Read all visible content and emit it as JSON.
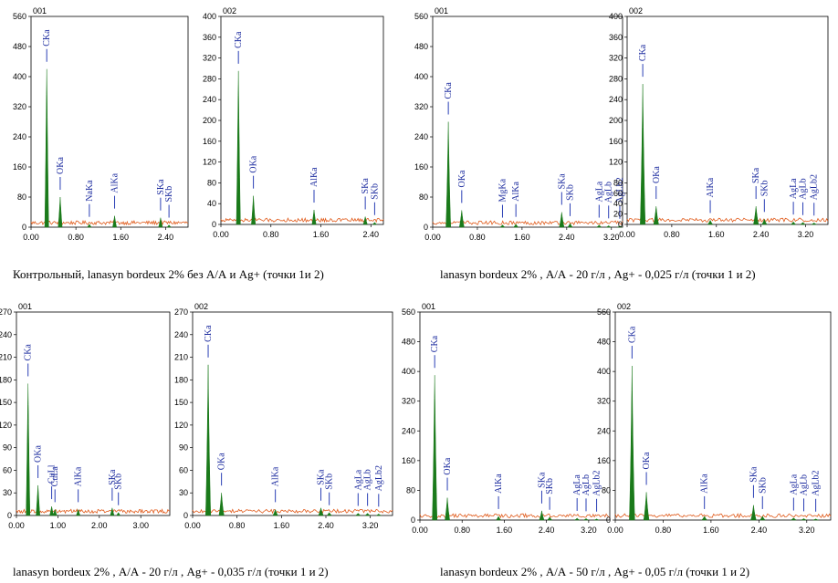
{
  "chart_data": [
    {
      "id": "001",
      "type": "area",
      "ylim": [
        0,
        560
      ],
      "yticks": [
        0,
        80,
        160,
        240,
        320,
        400,
        480,
        560
      ],
      "xlim": [
        0,
        2.8
      ],
      "xticks": [
        0.0,
        0.8,
        1.6,
        2.4
      ],
      "xtick_labels": [
        "0.00",
        "0.80",
        "1.60",
        "2.40"
      ],
      "color": "#1a7a1a",
      "noise_color": "#e05a1a",
      "peaks": [
        {
          "x": 0.28,
          "y": 420
        },
        {
          "x": 0.52,
          "y": 80
        },
        {
          "x": 1.04,
          "y": 8
        },
        {
          "x": 1.49,
          "y": 30
        },
        {
          "x": 2.31,
          "y": 25
        },
        {
          "x": 2.46,
          "y": 6
        }
      ],
      "lines": [
        {
          "label": "CKa",
          "x": 0.28
        },
        {
          "label": "OKa",
          "x": 0.52
        },
        {
          "label": "NaKa",
          "x": 1.04
        },
        {
          "label": "AlKa",
          "x": 1.49
        },
        {
          "label": "SKa",
          "x": 2.31
        },
        {
          "label": "SKb",
          "x": 2.46
        }
      ]
    },
    {
      "id": "002",
      "type": "area",
      "ylim": [
        0,
        400
      ],
      "yticks": [
        0,
        40,
        80,
        120,
        160,
        200,
        240,
        280,
        320,
        360,
        400
      ],
      "xlim": [
        0,
        2.6
      ],
      "xticks": [
        0.0,
        0.8,
        1.6,
        2.4
      ],
      "xtick_labels": [
        "0.00",
        "0.80",
        "1.60",
        "2.40"
      ],
      "color": "#1a7a1a",
      "noise_color": "#e05a1a",
      "peaks": [
        {
          "x": 0.28,
          "y": 295
        },
        {
          "x": 0.52,
          "y": 55
        },
        {
          "x": 1.49,
          "y": 28
        },
        {
          "x": 2.31,
          "y": 15
        },
        {
          "x": 2.46,
          "y": 4
        }
      ],
      "lines": [
        {
          "label": "CKa",
          "x": 0.28
        },
        {
          "label": "OKa",
          "x": 0.52
        },
        {
          "label": "AlKa",
          "x": 1.49
        },
        {
          "label": "SKa",
          "x": 2.31
        },
        {
          "label": "SKb",
          "x": 2.46
        }
      ]
    },
    {
      "id": "001",
      "type": "area",
      "ylim": [
        0,
        560
      ],
      "yticks": [
        0,
        80,
        160,
        240,
        320,
        400,
        480,
        560
      ],
      "xlim": [
        0,
        3.4
      ],
      "xticks": [
        0.0,
        0.8,
        1.6,
        2.4,
        3.2
      ],
      "xtick_labels": [
        "0.00",
        "0.80",
        "1.60",
        "2.40",
        "3.20"
      ],
      "color": "#1a7a1a",
      "noise_color": "#e05a1a",
      "peaks": [
        {
          "x": 0.28,
          "y": 280
        },
        {
          "x": 0.52,
          "y": 45
        },
        {
          "x": 1.25,
          "y": 6
        },
        {
          "x": 1.49,
          "y": 8
        },
        {
          "x": 2.31,
          "y": 40
        },
        {
          "x": 2.46,
          "y": 10
        },
        {
          "x": 2.98,
          "y": 6
        },
        {
          "x": 3.15,
          "y": 4
        },
        {
          "x": 3.35,
          "y": 3
        }
      ],
      "lines": [
        {
          "label": "CKa",
          "x": 0.28
        },
        {
          "label": "OKa",
          "x": 0.52
        },
        {
          "label": "MgKa",
          "x": 1.25
        },
        {
          "label": "AlKa",
          "x": 1.49
        },
        {
          "label": "SKa",
          "x": 2.31
        },
        {
          "label": "SKb",
          "x": 2.46
        },
        {
          "label": "AgLa",
          "x": 2.98
        },
        {
          "label": "AgLb",
          "x": 3.15
        },
        {
          "label": "AgLb2",
          "x": 3.35
        }
      ]
    },
    {
      "id": "002",
      "type": "area",
      "ylim": [
        0,
        400
      ],
      "yticks": [
        0,
        20,
        40,
        60,
        80,
        120,
        160,
        200,
        240,
        280,
        320,
        360,
        400
      ],
      "xlim": [
        0,
        3.6
      ],
      "xticks": [
        0.0,
        0.8,
        1.6,
        2.4,
        3.2
      ],
      "xtick_labels": [
        "0.00",
        "0.80",
        "1.60",
        "2.40",
        "3.20"
      ],
      "color": "#1a7a1a",
      "noise_color": "#e05a1a",
      "peaks": [
        {
          "x": 0.28,
          "y": 270
        },
        {
          "x": 0.52,
          "y": 35
        },
        {
          "x": 1.49,
          "y": 8
        },
        {
          "x": 2.31,
          "y": 35
        },
        {
          "x": 2.46,
          "y": 10
        },
        {
          "x": 2.98,
          "y": 5
        },
        {
          "x": 3.15,
          "y": 4
        },
        {
          "x": 3.35,
          "y": 3
        }
      ],
      "lines": [
        {
          "label": "CKa",
          "x": 0.28
        },
        {
          "label": "OKa",
          "x": 0.52
        },
        {
          "label": "AlKa",
          "x": 1.49
        },
        {
          "label": "SKa",
          "x": 2.31
        },
        {
          "label": "SKb",
          "x": 2.46
        },
        {
          "label": "AgLa",
          "x": 2.98
        },
        {
          "label": "AgLb",
          "x": 3.15
        },
        {
          "label": "AgLb2",
          "x": 3.35
        }
      ]
    },
    {
      "id": "001",
      "type": "area",
      "ylim": [
        0,
        270
      ],
      "yticks": [
        0,
        30,
        60,
        90,
        120,
        150,
        180,
        210,
        240,
        270
      ],
      "xlim": [
        0,
        3.7
      ],
      "xticks": [
        0.0,
        1.0,
        2.0,
        3.0
      ],
      "xtick_labels": [
        "0.00",
        "1.00",
        "2.00",
        "3.00"
      ],
      "color": "#1a7a1a",
      "noise_color": "#e05a1a",
      "peaks": [
        {
          "x": 0.28,
          "y": 175
        },
        {
          "x": 0.52,
          "y": 40
        },
        {
          "x": 0.85,
          "y": 12
        },
        {
          "x": 0.93,
          "y": 8
        },
        {
          "x": 1.49,
          "y": 8
        },
        {
          "x": 2.31,
          "y": 10
        },
        {
          "x": 2.46,
          "y": 4
        }
      ],
      "lines": [
        {
          "label": "CKa",
          "x": 0.28
        },
        {
          "label": "OKa",
          "x": 0.52
        },
        {
          "label": "CuLl",
          "x": 0.85
        },
        {
          "label": "CuLa",
          "x": 0.93
        },
        {
          "label": "AlKa",
          "x": 1.49
        },
        {
          "label": "SKa",
          "x": 2.31
        },
        {
          "label": "SKb",
          "x": 2.46
        }
      ]
    },
    {
      "id": "002",
      "type": "area",
      "ylim": [
        0,
        270
      ],
      "yticks": [
        0,
        30,
        60,
        90,
        120,
        150,
        180,
        210,
        240,
        270
      ],
      "xlim": [
        0,
        3.6
      ],
      "xticks": [
        0.0,
        0.8,
        1.6,
        2.4,
        3.2
      ],
      "xtick_labels": [
        "0.00",
        "0.80",
        "1.60",
        "2.40",
        "3.20"
      ],
      "color": "#1a7a1a",
      "noise_color": "#e05a1a",
      "peaks": [
        {
          "x": 0.28,
          "y": 200
        },
        {
          "x": 0.52,
          "y": 30
        },
        {
          "x": 1.49,
          "y": 8
        },
        {
          "x": 2.31,
          "y": 10
        },
        {
          "x": 2.46,
          "y": 4
        },
        {
          "x": 2.98,
          "y": 3
        },
        {
          "x": 3.15,
          "y": 3
        },
        {
          "x": 3.35,
          "y": 2
        }
      ],
      "lines": [
        {
          "label": "CKa",
          "x": 0.28
        },
        {
          "label": "OKa",
          "x": 0.52
        },
        {
          "label": "AlKa",
          "x": 1.49
        },
        {
          "label": "SKa",
          "x": 2.31
        },
        {
          "label": "SKb",
          "x": 2.46
        },
        {
          "label": "AgLa",
          "x": 2.98
        },
        {
          "label": "AgLb",
          "x": 3.15
        },
        {
          "label": "AgLb2",
          "x": 3.35
        }
      ]
    },
    {
      "id": "001",
      "type": "area",
      "ylim": [
        0,
        560
      ],
      "yticks": [
        0,
        80,
        160,
        240,
        320,
        400,
        480,
        560
      ],
      "xlim": [
        0,
        3.6
      ],
      "xticks": [
        0.0,
        0.8,
        1.6,
        2.4,
        3.2
      ],
      "xtick_labels": [
        "0.00",
        "0.80",
        "1.60",
        "2.40",
        "3.20"
      ],
      "color": "#1a7a1a",
      "noise_color": "#e05a1a",
      "peaks": [
        {
          "x": 0.28,
          "y": 390
        },
        {
          "x": 0.52,
          "y": 60
        },
        {
          "x": 1.49,
          "y": 10
        },
        {
          "x": 2.31,
          "y": 25
        },
        {
          "x": 2.46,
          "y": 8
        },
        {
          "x": 2.98,
          "y": 5
        },
        {
          "x": 3.15,
          "y": 4
        },
        {
          "x": 3.35,
          "y": 3
        }
      ],
      "lines": [
        {
          "label": "CKa",
          "x": 0.28
        },
        {
          "label": "OKa",
          "x": 0.52
        },
        {
          "label": "AlKa",
          "x": 1.49
        },
        {
          "label": "SKa",
          "x": 2.31
        },
        {
          "label": "SKb",
          "x": 2.46
        },
        {
          "label": "AgLa",
          "x": 2.98
        },
        {
          "label": "AgLb",
          "x": 3.15
        },
        {
          "label": "AgLb2",
          "x": 3.35
        }
      ]
    },
    {
      "id": "002",
      "type": "area",
      "ylim": [
        0,
        560
      ],
      "yticks": [
        0,
        80,
        160,
        240,
        320,
        400,
        480,
        560
      ],
      "xlim": [
        0,
        3.6
      ],
      "xticks": [
        0.0,
        0.8,
        1.6,
        2.4,
        3.2
      ],
      "xtick_labels": [
        "0.00",
        "0.80",
        "1.60",
        "2.40",
        "3.20"
      ],
      "color": "#1a7a1a",
      "noise_color": "#e05a1a",
      "peaks": [
        {
          "x": 0.28,
          "y": 415
        },
        {
          "x": 0.52,
          "y": 75
        },
        {
          "x": 1.49,
          "y": 10
        },
        {
          "x": 2.31,
          "y": 40
        },
        {
          "x": 2.46,
          "y": 10
        },
        {
          "x": 2.98,
          "y": 6
        },
        {
          "x": 3.15,
          "y": 4
        },
        {
          "x": 3.35,
          "y": 3
        }
      ],
      "lines": [
        {
          "label": "CKa",
          "x": 0.28
        },
        {
          "label": "OKa",
          "x": 0.52
        },
        {
          "label": "AlKa",
          "x": 1.49
        },
        {
          "label": "SKa",
          "x": 2.31
        },
        {
          "label": "SKb",
          "x": 2.46
        },
        {
          "label": "AgLa",
          "x": 2.98
        },
        {
          "label": "AgLb",
          "x": 3.15
        },
        {
          "label": "AgLb2",
          "x": 3.35
        }
      ]
    }
  ],
  "captions": [
    "Контрольный, lanasyn bordeux 2% без А/А и Ag+ (точки 1и 2)",
    "lanasyn bordeux 2% , А/А - 20 г/л , Ag+ - 0,025 г/л (точки 1 и 2)",
    "lanasyn bordeux 2% , А/А - 20 г/л , Ag+ - 0,035 г/л (точки 1 и 2)",
    "lanasyn bordeux 2% , А/А - 50 г/л , Ag+ - 0,05 г/л (точки 1 и 2)"
  ]
}
